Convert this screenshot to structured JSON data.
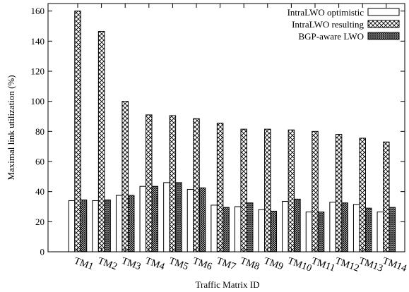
{
  "chart_data": {
    "type": "bar",
    "categories": [
      "TM1",
      "TM2",
      "TM3",
      "TM4",
      "TM5",
      "TM6",
      "TM7",
      "TM8",
      "TM9",
      "TM10",
      "TM11",
      "TM12",
      "TM13",
      "TM14"
    ],
    "series": [
      {
        "name": "IntraLWO optimistic",
        "pattern": "none",
        "values": [
          34,
          34,
          37.5,
          43.5,
          46,
          41.5,
          31,
          30,
          28,
          33.5,
          26.5,
          33,
          31.5,
          26.5
        ]
      },
      {
        "name": "IntraLWO resulting",
        "pattern": "cross",
        "values": [
          160,
          146.5,
          100,
          91,
          90.5,
          88.5,
          85.5,
          81.5,
          81.5,
          81,
          80,
          78,
          75.5,
          73
        ]
      },
      {
        "name": "BGP-aware LWO",
        "pattern": "dense",
        "values": [
          34.5,
          34.5,
          37.5,
          43.5,
          46,
          42.5,
          29.5,
          32.5,
          27,
          35,
          26.5,
          32.5,
          29,
          29.5
        ]
      }
    ],
    "xlabel": "Traffic Matrix ID",
    "ylabel": "Maximal link utilization (%)",
    "ylim": [
      0,
      165
    ],
    "yticks": [
      0,
      20,
      40,
      60,
      80,
      100,
      120,
      140,
      160
    ],
    "legend_position": "top-right",
    "grid": false,
    "colors": {
      "axis": "#000000",
      "fill": "#ffffff",
      "hatch": "#000000"
    }
  }
}
